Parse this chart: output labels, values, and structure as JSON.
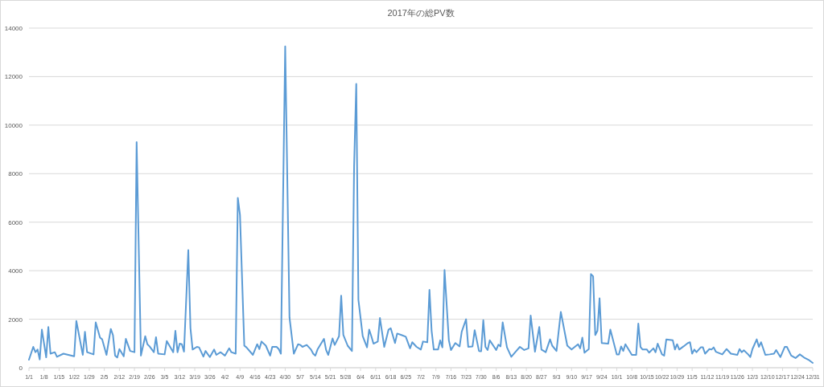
{
  "chart_data": {
    "type": "line",
    "title": "2017年の総PV数",
    "color": "#5b9bd5",
    "grid": "y",
    "marker": "none",
    "line_style": "solid",
    "xlim": [
      "2017-01-01",
      "2017-12-31"
    ],
    "ylim": [
      0,
      14000
    ],
    "yticks": [
      0,
      2000,
      4000,
      6000,
      8000,
      10000,
      12000,
      14000
    ],
    "xticks": [
      {
        "value": "2017-01-01",
        "label": "1/1"
      },
      {
        "value": "2017-01-08",
        "label": "1/8"
      },
      {
        "value": "2017-01-15",
        "label": "1/15"
      },
      {
        "value": "2017-01-22",
        "label": "1/22"
      },
      {
        "value": "2017-01-29",
        "label": "1/29"
      },
      {
        "value": "2017-02-05",
        "label": "2/5"
      },
      {
        "value": "2017-02-12",
        "label": "2/12"
      },
      {
        "value": "2017-02-19",
        "label": "2/19"
      },
      {
        "value": "2017-02-26",
        "label": "2/26"
      },
      {
        "value": "2017-03-05",
        "label": "3/5"
      },
      {
        "value": "2017-03-12",
        "label": "3/12"
      },
      {
        "value": "2017-03-19",
        "label": "3/19"
      },
      {
        "value": "2017-03-26",
        "label": "3/26"
      },
      {
        "value": "2017-04-02",
        "label": "4/2"
      },
      {
        "value": "2017-04-09",
        "label": "4/9"
      },
      {
        "value": "2017-04-16",
        "label": "4/16"
      },
      {
        "value": "2017-04-23",
        "label": "4/23"
      },
      {
        "value": "2017-04-30",
        "label": "4/30"
      },
      {
        "value": "2017-05-07",
        "label": "5/7"
      },
      {
        "value": "2017-05-14",
        "label": "5/14"
      },
      {
        "value": "2017-05-21",
        "label": "5/21"
      },
      {
        "value": "2017-05-28",
        "label": "5/28"
      },
      {
        "value": "2017-06-04",
        "label": "6/4"
      },
      {
        "value": "2017-06-11",
        "label": "6/11"
      },
      {
        "value": "2017-06-18",
        "label": "6/18"
      },
      {
        "value": "2017-06-25",
        "label": "6/25"
      },
      {
        "value": "2017-07-02",
        "label": "7/2"
      },
      {
        "value": "2017-07-09",
        "label": "7/9"
      },
      {
        "value": "2017-07-16",
        "label": "7/16"
      },
      {
        "value": "2017-07-23",
        "label": "7/23"
      },
      {
        "value": "2017-07-30",
        "label": "7/30"
      },
      {
        "value": "2017-08-06",
        "label": "8/6"
      },
      {
        "value": "2017-08-13",
        "label": "8/13"
      },
      {
        "value": "2017-08-20",
        "label": "8/20"
      },
      {
        "value": "2017-08-27",
        "label": "8/27"
      },
      {
        "value": "2017-09-03",
        "label": "9/3"
      },
      {
        "value": "2017-09-10",
        "label": "9/10"
      },
      {
        "value": "2017-09-17",
        "label": "9/17"
      },
      {
        "value": "2017-09-24",
        "label": "9/24"
      },
      {
        "value": "2017-10-01",
        "label": "10/1"
      },
      {
        "value": "2017-10-08",
        "label": "10/8"
      },
      {
        "value": "2017-10-15",
        "label": "10/15"
      },
      {
        "value": "2017-10-22",
        "label": "10/22"
      },
      {
        "value": "2017-10-29",
        "label": "10/29"
      },
      {
        "value": "2017-11-05",
        "label": "11/5"
      },
      {
        "value": "2017-11-12",
        "label": "11/12"
      },
      {
        "value": "2017-11-19",
        "label": "11/19"
      },
      {
        "value": "2017-11-26",
        "label": "11/26"
      },
      {
        "value": "2017-12-03",
        "label": "12/3"
      },
      {
        "value": "2017-12-10",
        "label": "12/10"
      },
      {
        "value": "2017-12-17",
        "label": "12/17"
      },
      {
        "value": "2017-12-24",
        "label": "12/24"
      },
      {
        "value": "2017-12-31",
        "label": "12/31"
      }
    ],
    "x": [
      "2017-01-01",
      "2017-01-03",
      "2017-01-04",
      "2017-01-05",
      "2017-01-06",
      "2017-01-07",
      "2017-01-09",
      "2017-01-10",
      "2017-01-11",
      "2017-01-13",
      "2017-01-14",
      "2017-01-17",
      "2017-01-22",
      "2017-01-23",
      "2017-01-26",
      "2017-01-27",
      "2017-01-28",
      "2017-01-31",
      "2017-02-01",
      "2017-02-03",
      "2017-02-04",
      "2017-02-06",
      "2017-02-08",
      "2017-02-09",
      "2017-02-10",
      "2017-02-11",
      "2017-02-12",
      "2017-02-14",
      "2017-02-15",
      "2017-02-17",
      "2017-02-19",
      "2017-02-20",
      "2017-02-22",
      "2017-02-24",
      "2017-02-25",
      "2017-02-26",
      "2017-02-28",
      "2017-03-01",
      "2017-03-02",
      "2017-03-05",
      "2017-03-06",
      "2017-03-09",
      "2017-03-10",
      "2017-03-11",
      "2017-03-12",
      "2017-03-13",
      "2017-03-14",
      "2017-03-16",
      "2017-03-17",
      "2017-03-18",
      "2017-03-20",
      "2017-03-21",
      "2017-03-23",
      "2017-03-24",
      "2017-03-26",
      "2017-03-28",
      "2017-03-29",
      "2017-03-31",
      "2017-04-02",
      "2017-04-04",
      "2017-04-05",
      "2017-04-07",
      "2017-04-08",
      "2017-04-09",
      "2017-04-11",
      "2017-04-12",
      "2017-04-15",
      "2017-04-17",
      "2017-04-18",
      "2017-04-19",
      "2017-04-21",
      "2017-04-23",
      "2017-04-24",
      "2017-04-26",
      "2017-04-27",
      "2017-04-28",
      "2017-04-30",
      "2017-05-02",
      "2017-05-04",
      "2017-05-06",
      "2017-05-07",
      "2017-05-08",
      "2017-05-10",
      "2017-05-12",
      "2017-05-13",
      "2017-05-14",
      "2017-05-15",
      "2017-05-18",
      "2017-05-19",
      "2017-05-20",
      "2017-05-22",
      "2017-05-23",
      "2017-05-25",
      "2017-05-26",
      "2017-05-27",
      "2017-05-29",
      "2017-05-31",
      "2017-06-01",
      "2017-06-02",
      "2017-06-03",
      "2017-06-05",
      "2017-06-07",
      "2017-06-08",
      "2017-06-09",
      "2017-06-10",
      "2017-06-12",
      "2017-06-13",
      "2017-06-15",
      "2017-06-17",
      "2017-06-18",
      "2017-06-20",
      "2017-06-21",
      "2017-06-23",
      "2017-06-25",
      "2017-06-27",
      "2017-06-28",
      "2017-06-30",
      "2017-07-02",
      "2017-07-03",
      "2017-07-05",
      "2017-07-06",
      "2017-07-07",
      "2017-07-08",
      "2017-07-10",
      "2017-07-11",
      "2017-07-12",
      "2017-07-13",
      "2017-07-15",
      "2017-07-16",
      "2017-07-18",
      "2017-07-20",
      "2017-07-21",
      "2017-07-23",
      "2017-07-24",
      "2017-07-26",
      "2017-07-27",
      "2017-07-29",
      "2017-07-30",
      "2017-07-31",
      "2017-08-01",
      "2017-08-02",
      "2017-08-03",
      "2017-08-06",
      "2017-08-07",
      "2017-08-08",
      "2017-08-09",
      "2017-08-11",
      "2017-08-13",
      "2017-08-15",
      "2017-08-17",
      "2017-08-19",
      "2017-08-21",
      "2017-08-22",
      "2017-08-24",
      "2017-08-26",
      "2017-08-27",
      "2017-08-29",
      "2017-08-31",
      "2017-09-01",
      "2017-09-03",
      "2017-09-05",
      "2017-09-08",
      "2017-09-10",
      "2017-09-13",
      "2017-09-14",
      "2017-09-15",
      "2017-09-16",
      "2017-09-18",
      "2017-09-19",
      "2017-09-20",
      "2017-09-21",
      "2017-09-22",
      "2017-09-23",
      "2017-09-24",
      "2017-09-27",
      "2017-09-28",
      "2017-10-01",
      "2017-10-02",
      "2017-10-03",
      "2017-10-04",
      "2017-10-05",
      "2017-10-08",
      "2017-10-10",
      "2017-10-11",
      "2017-10-12",
      "2017-10-13",
      "2017-10-15",
      "2017-10-16",
      "2017-10-18",
      "2017-10-19",
      "2017-10-20",
      "2017-10-22",
      "2017-10-23",
      "2017-10-24",
      "2017-10-27",
      "2017-10-28",
      "2017-10-29",
      "2017-10-30",
      "2017-11-01",
      "2017-11-03",
      "2017-11-04",
      "2017-11-05",
      "2017-11-06",
      "2017-11-07",
      "2017-11-09",
      "2017-11-10",
      "2017-11-11",
      "2017-11-13",
      "2017-11-14",
      "2017-11-15",
      "2017-11-16",
      "2017-11-19",
      "2017-11-21",
      "2017-11-23",
      "2017-11-26",
      "2017-11-27",
      "2017-11-28",
      "2017-11-29",
      "2017-12-01",
      "2017-12-02",
      "2017-12-03",
      "2017-12-05",
      "2017-12-06",
      "2017-12-07",
      "2017-12-09",
      "2017-12-11",
      "2017-12-13",
      "2017-12-14",
      "2017-12-16",
      "2017-12-18",
      "2017-12-19",
      "2017-12-21",
      "2017-12-23",
      "2017-12-25",
      "2017-12-27",
      "2017-12-29",
      "2017-12-31"
    ],
    "values": [
      330,
      860,
      640,
      750,
      340,
      1570,
      430,
      1680,
      580,
      640,
      450,
      580,
      470,
      1930,
      530,
      1480,
      640,
      550,
      1870,
      1240,
      1170,
      530,
      1600,
      1350,
      500,
      420,
      770,
      470,
      1190,
      690,
      640,
      9300,
      500,
      1300,
      970,
      880,
      640,
      1260,
      580,
      550,
      1100,
      640,
      1520,
      640,
      990,
      970,
      660,
      4850,
      1630,
      750,
      860,
      840,
      460,
      690,
      440,
      750,
      530,
      640,
      500,
      800,
      640,
      580,
      7000,
      6300,
      910,
      840,
      530,
      970,
      770,
      1080,
      910,
      500,
      860,
      860,
      770,
      580,
      13250,
      2070,
      580,
      970,
      940,
      860,
      940,
      750,
      580,
      500,
      750,
      1190,
      730,
      530,
      1210,
      940,
      1300,
      2970,
      1350,
      910,
      690,
      8300,
      11700,
      2800,
      1300,
      840,
      1570,
      1300,
      990,
      1080,
      2050,
      860,
      1570,
      1630,
      1020,
      1410,
      1350,
      1280,
      800,
      1050,
      860,
      750,
      1080,
      1050,
      3210,
      1520,
      750,
      750,
      1130,
      840,
      4030,
      1130,
      730,
      1020,
      880,
      1490,
      2000,
      860,
      880,
      1550,
      690,
      680,
      1960,
      860,
      730,
      1130,
      730,
      950,
      880,
      1870,
      840,
      450,
      660,
      860,
      730,
      800,
      2150,
      660,
      1680,
      750,
      640,
      1170,
      910,
      690,
      2300,
      910,
      750,
      970,
      800,
      1240,
      620,
      770,
      3860,
      3770,
      1350,
      1520,
      2860,
      1020,
      990,
      1570,
      550,
      550,
      880,
      690,
      970,
      530,
      530,
      1820,
      860,
      750,
      750,
      620,
      800,
      640,
      990,
      550,
      500,
      1170,
      1130,
      750,
      970,
      750,
      880,
      1020,
      1050,
      580,
      750,
      640,
      840,
      840,
      580,
      770,
      750,
      840,
      660,
      550,
      770,
      580,
      530,
      770,
      640,
      720,
      550,
      440,
      770,
      1170,
      860,
      1050,
      530,
      550,
      580,
      730,
      440,
      860,
      860,
      500,
      400,
      550,
      420,
      330,
      200
    ]
  }
}
